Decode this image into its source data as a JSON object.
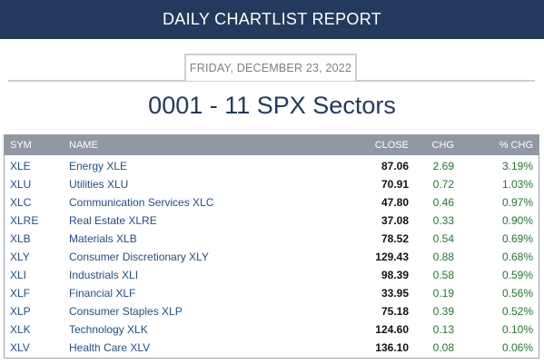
{
  "header": {
    "banner_title": "DAILY CHARTLIST REPORT",
    "date": "FRIDAY, DECEMBER 23, 2022",
    "report_title": "0001 - 11 SPX Sectors"
  },
  "colors": {
    "banner_bg": "#233a5e",
    "table_header_bg": "#8f98a3",
    "link_blue": "#1f4e8c",
    "positive_green": "#1e7a2e"
  },
  "table": {
    "columns": {
      "sym": "SYM",
      "name": "NAME",
      "close": "CLOSE",
      "chg": "CHG",
      "pct": "% CHG"
    },
    "rows": [
      {
        "sym": "XLE",
        "name": "Energy XLE",
        "close": "87.06",
        "chg": "2.69",
        "pct": "3.19%"
      },
      {
        "sym": "XLU",
        "name": "Utilities XLU",
        "close": "70.91",
        "chg": "0.72",
        "pct": "1.03%"
      },
      {
        "sym": "XLC",
        "name": "Communication Services XLC",
        "close": "47.80",
        "chg": "0.46",
        "pct": "0.97%"
      },
      {
        "sym": "XLRE",
        "name": "Real Estate XLRE",
        "close": "37.08",
        "chg": "0.33",
        "pct": "0.90%"
      },
      {
        "sym": "XLB",
        "name": "Materials XLB",
        "close": "78.52",
        "chg": "0.54",
        "pct": "0.69%"
      },
      {
        "sym": "XLY",
        "name": "Consumer Discretionary XLY",
        "close": "129.43",
        "chg": "0.88",
        "pct": "0.68%"
      },
      {
        "sym": "XLI",
        "name": "Industrials XLI",
        "close": "98.39",
        "chg": "0.58",
        "pct": "0.59%"
      },
      {
        "sym": "XLF",
        "name": "Financial XLF",
        "close": "33.95",
        "chg": "0.19",
        "pct": "0.56%"
      },
      {
        "sym": "XLP",
        "name": "Consumer Staples XLP",
        "close": "75.18",
        "chg": "0.39",
        "pct": "0.52%"
      },
      {
        "sym": "XLK",
        "name": "Technology XLK",
        "close": "124.60",
        "chg": "0.13",
        "pct": "0.10%"
      },
      {
        "sym": "XLV",
        "name": "Health Care XLV",
        "close": "136.10",
        "chg": "0.08",
        "pct": "0.06%"
      }
    ]
  }
}
